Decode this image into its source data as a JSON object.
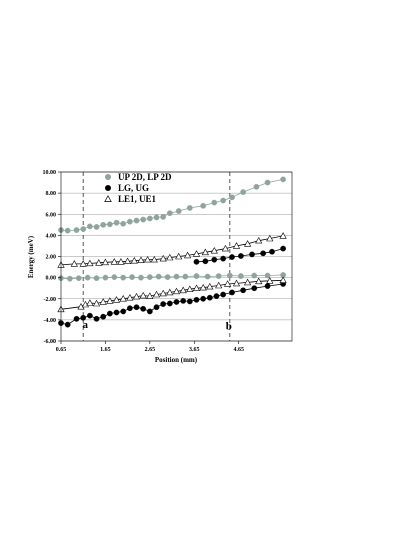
{
  "chart_data": {
    "type": "scatter",
    "xlabel": "Position (mm)",
    "ylabel": "Energy (meV)",
    "xlim": [
      0.65,
      5.85
    ],
    "ylim": [
      -6.0,
      10.0
    ],
    "x_ticks": [
      0.65,
      1.65,
      2.65,
      3.65,
      4.65
    ],
    "x_tick_labels": [
      "0.65",
      "1.65",
      "2.65",
      "3.65",
      "4.65"
    ],
    "y_ticks": [
      -6,
      -4,
      -2,
      0,
      2,
      4,
      6,
      8,
      10
    ],
    "y_tick_labels": [
      "-6.00",
      "-4.00",
      "-2.00",
      "0.00",
      "2.00",
      "4.00",
      "6.00",
      "8.00",
      "10.00"
    ],
    "grid": "horizontal",
    "legend_position": "top-center",
    "legend": [
      {
        "label": "UP 2D, LP 2D",
        "marker": "circle",
        "color": "#8fa39f"
      },
      {
        "label": "LG, UG",
        "marker": "circle",
        "color": "#000000"
      },
      {
        "label": "LE1, UE1",
        "marker": "triangle-open",
        "color": "#000000"
      }
    ],
    "vlines": [
      {
        "x": 1.15,
        "label": "a"
      },
      {
        "x": 4.45,
        "label": "b"
      }
    ],
    "series": [
      {
        "name": "UP 2D",
        "marker": "circle",
        "color": "#8fa39f",
        "x": [
          0.65,
          0.8,
          1.0,
          1.15,
          1.3,
          1.45,
          1.6,
          1.75,
          1.9,
          2.05,
          2.2,
          2.35,
          2.5,
          2.65,
          2.8,
          2.95,
          3.1,
          3.3,
          3.55,
          3.85,
          4.1,
          4.3,
          4.5,
          4.75,
          5.05,
          5.3,
          5.65
        ],
        "y": [
          4.5,
          4.45,
          4.5,
          4.6,
          4.85,
          4.8,
          5.0,
          5.05,
          5.2,
          5.1,
          5.3,
          5.4,
          5.5,
          5.6,
          5.7,
          5.75,
          6.1,
          6.3,
          6.6,
          6.8,
          7.1,
          7.3,
          7.6,
          8.1,
          8.6,
          9.0,
          9.3
        ]
      },
      {
        "name": "LP 2D",
        "marker": "circle",
        "color": "#8fa39f",
        "x": [
          0.65,
          0.85,
          1.05,
          1.25,
          1.45,
          1.65,
          1.85,
          2.05,
          2.25,
          2.45,
          2.65,
          2.85,
          3.05,
          3.25,
          3.45,
          3.7,
          3.95,
          4.2,
          4.45,
          4.7,
          5.0,
          5.3,
          5.65
        ],
        "y": [
          -0.05,
          -0.1,
          -0.05,
          0.0,
          -0.05,
          0.0,
          0.05,
          0.0,
          0.05,
          0.0,
          0.05,
          0.1,
          0.05,
          0.1,
          0.1,
          0.15,
          0.1,
          0.15,
          0.2,
          0.15,
          0.2,
          0.2,
          0.25
        ]
      },
      {
        "name": "LG",
        "marker": "circle",
        "color": "#000000",
        "x": [
          0.65,
          0.8,
          1.0,
          1.15,
          1.3,
          1.45,
          1.6,
          1.75,
          1.9,
          2.05,
          2.2,
          2.35,
          2.5,
          2.65,
          2.8,
          2.95,
          3.1,
          3.25,
          3.4,
          3.55,
          3.7,
          3.85,
          4.0,
          4.15,
          4.3,
          4.5,
          4.75,
          5.0,
          5.3,
          5.65
        ],
        "y": [
          -4.3,
          -4.45,
          -3.9,
          -3.8,
          -3.6,
          -3.9,
          -3.7,
          -3.4,
          -3.3,
          -3.2,
          -2.9,
          -2.8,
          -2.95,
          -3.2,
          -2.8,
          -2.5,
          -2.45,
          -2.3,
          -2.2,
          -2.25,
          -2.1,
          -2.0,
          -1.9,
          -1.75,
          -1.6,
          -1.4,
          -1.2,
          -1.0,
          -0.8,
          -0.6
        ]
      },
      {
        "name": "UG",
        "marker": "circle",
        "color": "#000000",
        "x": [
          3.7,
          3.9,
          4.1,
          4.3,
          4.5,
          4.7,
          4.95,
          5.2,
          5.4,
          5.65
        ],
        "y": [
          1.5,
          1.55,
          1.7,
          1.8,
          1.95,
          2.05,
          2.2,
          2.3,
          2.45,
          2.75
        ]
      },
      {
        "name": "LE1",
        "marker": "triangle-open",
        "color": "#000000",
        "x": [
          0.65,
          1.1,
          1.2,
          1.3,
          1.45,
          1.6,
          1.75,
          1.9,
          2.05,
          2.2,
          2.35,
          2.5,
          2.65,
          2.8,
          2.95,
          3.1,
          3.25,
          3.4,
          3.55,
          3.7,
          3.85,
          4.0,
          4.2,
          4.4,
          4.6,
          4.85,
          5.1,
          5.35,
          5.65
        ],
        "y": [
          -3.0,
          -2.75,
          -2.55,
          -2.4,
          -2.45,
          -2.3,
          -2.2,
          -2.1,
          -2.0,
          -1.9,
          -1.8,
          -1.7,
          -1.75,
          -1.6,
          -1.5,
          -1.4,
          -1.3,
          -1.2,
          -1.1,
          -1.0,
          -0.95,
          -0.85,
          -0.75,
          -0.6,
          -0.55,
          -0.45,
          -0.35,
          -0.3,
          -0.25
        ]
      },
      {
        "name": "UE1",
        "marker": "triangle-open",
        "color": "#000000",
        "x": [
          0.65,
          0.95,
          1.15,
          1.3,
          1.5,
          1.65,
          1.85,
          2.0,
          2.15,
          2.3,
          2.45,
          2.6,
          2.75,
          2.95,
          3.1,
          3.3,
          3.5,
          3.7,
          3.9,
          4.1,
          4.35,
          4.6,
          4.85,
          5.1,
          5.35,
          5.65
        ],
        "y": [
          1.2,
          1.3,
          1.3,
          1.35,
          1.4,
          1.45,
          1.5,
          1.5,
          1.55,
          1.6,
          1.65,
          1.7,
          1.7,
          1.8,
          1.9,
          2.0,
          2.1,
          2.25,
          2.4,
          2.55,
          2.75,
          3.0,
          3.2,
          3.5,
          3.7,
          3.95
        ]
      }
    ]
  }
}
